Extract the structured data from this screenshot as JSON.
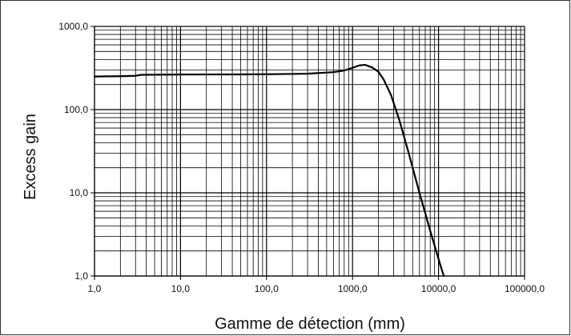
{
  "chart_data": {
    "type": "line",
    "title": "",
    "xlabel": "Gamme de détection (mm)",
    "ylabel": "Excess gain",
    "x_scale": "log",
    "y_scale": "log",
    "xlim": [
      1,
      100000
    ],
    "ylim": [
      1,
      1000
    ],
    "grid": true,
    "legend": "none",
    "x_ticks": [
      {
        "value": 1,
        "label": "1,0"
      },
      {
        "value": 10,
        "label": "10,0"
      },
      {
        "value": 100,
        "label": "100,0"
      },
      {
        "value": 1000,
        "label": "1000,0"
      },
      {
        "value": 10000,
        "label": "10000,0"
      },
      {
        "value": 100000,
        "label": "100000,0"
      }
    ],
    "y_ticks": [
      {
        "value": 1,
        "label": "1,0"
      },
      {
        "value": 10,
        "label": "10,0"
      },
      {
        "value": 100,
        "label": "100,0"
      },
      {
        "value": 1000,
        "label": "1000,0"
      }
    ],
    "series": [
      {
        "color": "#000000",
        "x": [
          1,
          2,
          3,
          3.5,
          10,
          50,
          100,
          300,
          600,
          800,
          1000,
          1200,
          1400,
          1700,
          2000,
          2300,
          2800,
          3500,
          4500,
          6000,
          8000,
          10000,
          11500
        ],
        "y": [
          250,
          252,
          255,
          262,
          264,
          265,
          266,
          270,
          282,
          295,
          318,
          340,
          345,
          320,
          285,
          230,
          150,
          75,
          30,
          10,
          3.5,
          1.6,
          1.0
        ]
      }
    ],
    "colors": {
      "grid": "#000000",
      "line": "#000000",
      "frame": "#333333"
    }
  }
}
